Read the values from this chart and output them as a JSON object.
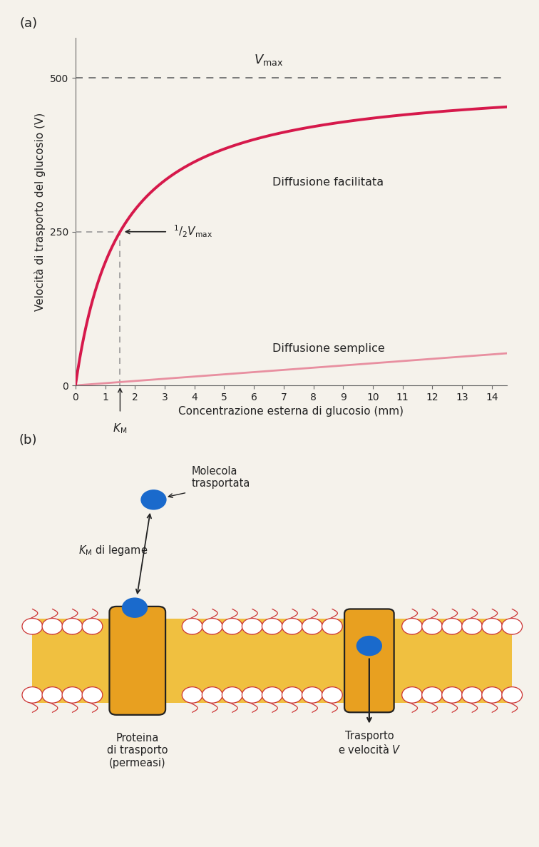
{
  "vmax": 500,
  "km": 1.5,
  "x_max": 14.5,
  "panel_a_label": "(a)",
  "panel_b_label": "(b)",
  "ylabel": "Velocità di trasporto del glucosio (V)",
  "xlabel": "Concentrazione esterna di glucosio (mm)",
  "yticks": [
    0,
    250,
    500
  ],
  "xticks": [
    0,
    1,
    2,
    3,
    4,
    5,
    6,
    7,
    8,
    9,
    10,
    11,
    12,
    13,
    14
  ],
  "curve_color_facilitated": "#d6194b",
  "curve_color_simple": "#e88fa0",
  "vmax_line_color": "#666666",
  "dashed_line_color": "#999999",
  "label_facilitated": "Diffusione facilitata",
  "label_simple": "Diffusione semplice",
  "vmax_label": "$V_\\mathrm{max}$",
  "half_vmax_label": "$^{1}/_{2}V_\\mathrm{max}$",
  "km_label": "$K_\\mathrm{M}$",
  "bg_color": "#f5f2eb",
  "membrane_yellow": "#f0c040",
  "lipid_red": "#cc3333",
  "protein_color": "#e8a020",
  "protein_border": "#222222",
  "blue_molecule": "#1a6acc",
  "arrow_color": "#222222",
  "text_color": "#222222",
  "molecule_label": "Molecola\ntrasportata",
  "km_label_b": "$K_\\mathrm{M}$ di legame",
  "protein_label": "Proteina\ndi trasporto\n(permeasi)",
  "transport_label": "Trasporto\ne velocità $V$"
}
